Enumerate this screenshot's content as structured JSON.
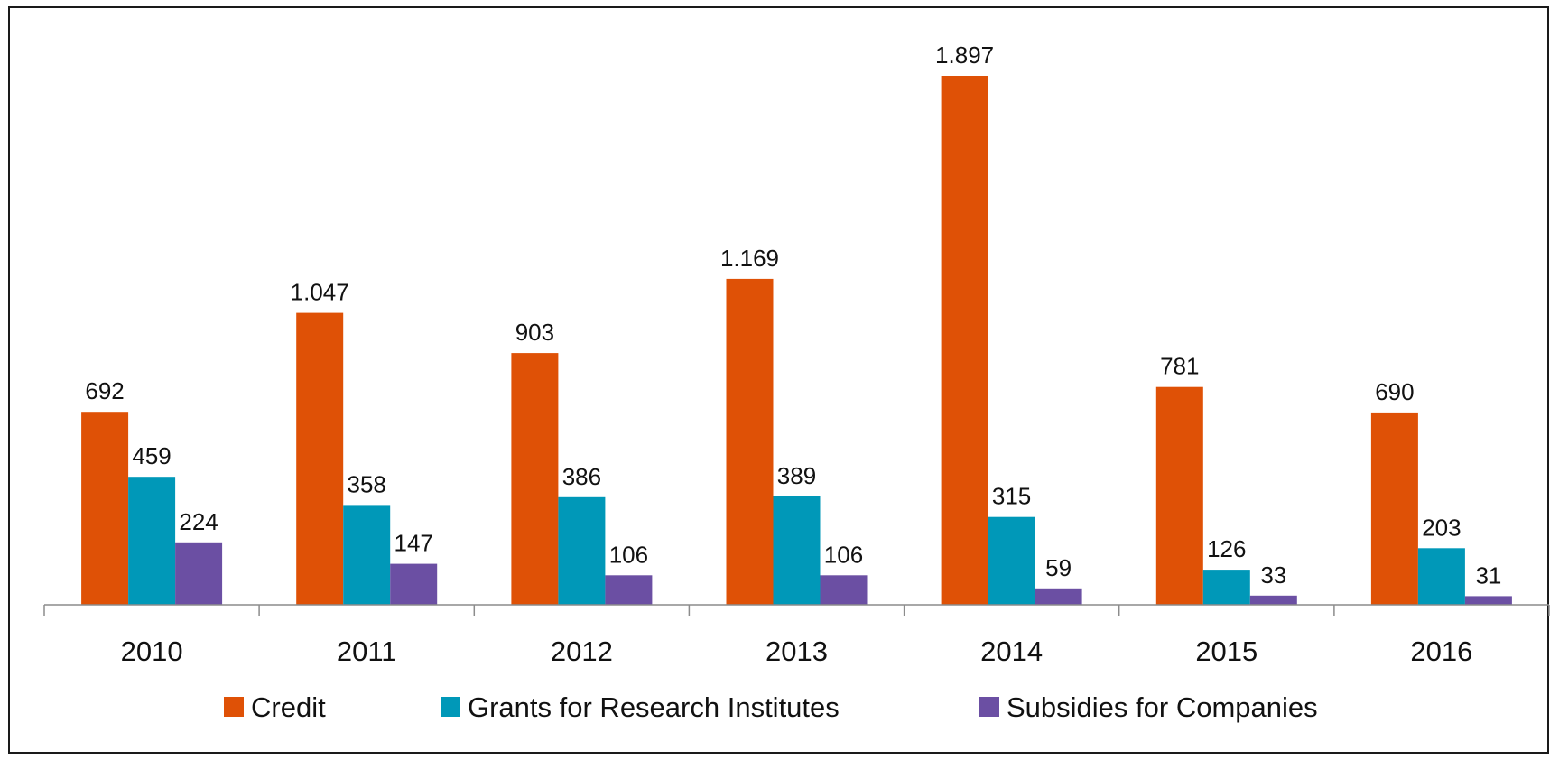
{
  "chart_data": {
    "type": "bar",
    "title": "",
    "xlabel": "",
    "ylabel": "",
    "categories": [
      "2010",
      "2011",
      "2012",
      "2013",
      "2014",
      "2015",
      "2016"
    ],
    "ylim": [
      0,
      2000
    ],
    "grid": false,
    "legend_position": "bottom",
    "series": [
      {
        "name": "Credit",
        "color": "#df5106",
        "values": [
          692,
          1047,
          903,
          1169,
          1897,
          781,
          690
        ],
        "labels": [
          "692",
          "1.047",
          "903",
          "1.169",
          "1.897",
          "781",
          "690"
        ]
      },
      {
        "name": "Grants for Research Institutes",
        "color": "#0098b8",
        "values": [
          459,
          358,
          386,
          389,
          315,
          126,
          203
        ],
        "labels": [
          "459",
          "358",
          "386",
          "389",
          "315",
          "126",
          "203"
        ]
      },
      {
        "name": "Subsidies for Companies",
        "color": "#6b4fa3",
        "values": [
          224,
          147,
          106,
          106,
          59,
          33,
          31
        ],
        "labels": [
          "224",
          "147",
          "106",
          "106",
          "59",
          "33",
          "31"
        ]
      }
    ]
  }
}
